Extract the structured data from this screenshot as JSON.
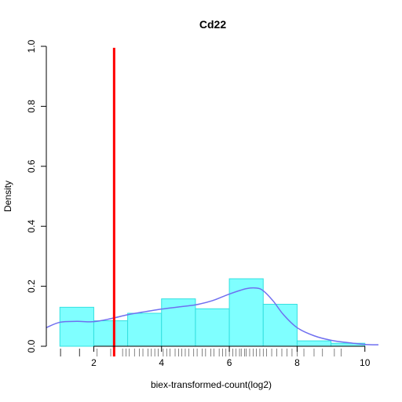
{
  "chart_data": {
    "type": "histogram",
    "title": "Cd22",
    "xlabel": "biex-transformed-count(log2)",
    "ylabel": "Density",
    "xlim": [
      0.6,
      10.4
    ],
    "ylim": [
      0,
      1.0
    ],
    "x_ticks": [
      2,
      4,
      6,
      8,
      10
    ],
    "y_ticks": [
      "0.0",
      "0.2",
      "0.4",
      "0.6",
      "0.8",
      "1.0"
    ],
    "bins": [
      {
        "x0": 1,
        "x1": 2,
        "density": 0.13
      },
      {
        "x0": 2,
        "x1": 3,
        "density": 0.085
      },
      {
        "x0": 3,
        "x1": 4,
        "density": 0.11
      },
      {
        "x0": 4,
        "x1": 5,
        "density": 0.158
      },
      {
        "x0": 5,
        "x1": 6,
        "density": 0.125
      },
      {
        "x0": 6,
        "x1": 7,
        "density": 0.225
      },
      {
        "x0": 7,
        "x1": 8,
        "density": 0.14
      },
      {
        "x0": 8,
        "x1": 9,
        "density": 0.018
      },
      {
        "x0": 9,
        "x1": 10,
        "density": 0.01
      }
    ],
    "density_curve": {
      "x": [
        0.6,
        1.0,
        1.5,
        2.0,
        2.5,
        3.0,
        3.5,
        4.0,
        4.5,
        5.0,
        5.5,
        6.0,
        6.5,
        6.8,
        7.0,
        7.3,
        7.6,
        8.0,
        8.5,
        9.0,
        9.5,
        10.0,
        10.4
      ],
      "y": [
        0.062,
        0.08,
        0.083,
        0.082,
        0.092,
        0.105,
        0.115,
        0.124,
        0.131,
        0.138,
        0.152,
        0.174,
        0.192,
        0.194,
        0.185,
        0.15,
        0.105,
        0.062,
        0.035,
        0.02,
        0.012,
        0.006,
        0.005
      ]
    },
    "threshold_line": {
      "x": 2.6,
      "color": "#ff0000"
    },
    "rug": [
      1.02,
      1.58,
      2.1,
      2.5,
      2.85,
      2.95,
      3.05,
      3.2,
      3.35,
      3.45,
      3.6,
      3.7,
      3.8,
      3.9,
      4.05,
      4.15,
      4.25,
      4.4,
      4.5,
      4.6,
      4.7,
      4.8,
      4.95,
      5.05,
      5.2,
      5.3,
      5.45,
      5.55,
      5.7,
      5.8,
      5.9,
      6.0,
      6.1,
      6.2,
      6.3,
      6.35,
      6.45,
      6.5,
      6.6,
      6.7,
      6.8,
      6.9,
      7.0,
      7.1,
      7.25,
      7.4,
      7.55,
      7.7,
      7.85,
      8.0,
      8.2,
      8.5,
      8.75,
      9.1,
      9.3
    ],
    "colors": {
      "bar_fill": "#7fffff",
      "bar_stroke": "#33e0e0",
      "curve": "#6f6ff0",
      "threshold": "#ff0000",
      "axis": "#000000"
    }
  }
}
